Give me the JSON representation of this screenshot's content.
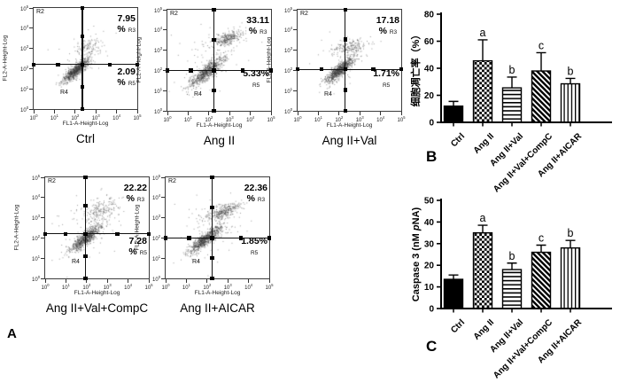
{
  "panel_labels": [
    "A",
    "B",
    "C"
  ],
  "colors": {
    "ink": "#000000",
    "scatter": "#3c3c3c",
    "background": "#ffffff",
    "bar_fill": "#000000"
  },
  "chart_data": [
    {
      "type": "scatter",
      "panel": "A",
      "title": "Ctrl",
      "xlabel": "FL1-A-Height-Log",
      "ylabel": "FL2-A-Height-Log",
      "log_range": [
        0,
        5
      ],
      "tick_exponents": [
        0,
        1,
        2,
        3,
        4,
        5
      ],
      "tick_base": "10",
      "gate": {
        "x": 2.35,
        "y": 2.2
      },
      "region_top_left": "R2",
      "region_lower_left": "R4",
      "upper_right": {
        "line1": "7.95",
        "line2": "%",
        "region": "R3"
      },
      "lower_right": {
        "line1": "2.09",
        "line2": "%",
        "region": "R5"
      },
      "quadrant_stats": {
        "R3_percent": 7.95,
        "R5_percent": 2.09
      },
      "clusters": [
        {
          "n": 850,
          "cx": 2.05,
          "cy": 1.95,
          "s1": 0.4,
          "s2": 0.12,
          "angle": 42
        },
        {
          "n": 120,
          "cx": 2.6,
          "cy": 3.1,
          "s1": 0.32,
          "s2": 0.2,
          "angle": 20
        },
        {
          "n": 40,
          "cx": 2.4,
          "cy": 2.6,
          "s1": 0.9,
          "s2": 0.6,
          "angle": 40
        }
      ],
      "seed": 7
    },
    {
      "type": "scatter",
      "panel": "A",
      "title": "Ang II",
      "xlabel": "FL1-A-Height-Log",
      "ylabel": "FL2-A-Height-Log",
      "log_range": [
        0,
        5
      ],
      "tick_exponents": [
        0,
        1,
        2,
        3,
        4,
        5
      ],
      "tick_base": "10",
      "gate": {
        "x": 2.25,
        "y": 2.0
      },
      "region_top_left": "R2",
      "region_lower_left": "R4",
      "upper_right": {
        "line1": "33.11",
        "line2": "%",
        "region": "R3"
      },
      "lower_right": {
        "line1": "5.33%",
        "line2": "",
        "region": "R5"
      },
      "quadrant_stats": {
        "R3_percent": 33.11,
        "R5_percent": 5.33
      },
      "clusters": [
        {
          "n": 780,
          "cx": 1.9,
          "cy": 1.95,
          "s1": 0.52,
          "s2": 0.15,
          "angle": 40
        },
        {
          "n": 300,
          "cx": 2.9,
          "cy": 3.6,
          "s1": 0.38,
          "s2": 0.16,
          "angle": 18
        },
        {
          "n": 70,
          "cx": 2.2,
          "cy": 2.6,
          "s1": 1.0,
          "s2": 0.7,
          "angle": 40
        }
      ],
      "seed": 13
    },
    {
      "type": "scatter",
      "panel": "A",
      "title": "Ang II+Val",
      "xlabel": "FL1-A-Height-Log",
      "ylabel": "FL2-A-Height-Log",
      "log_range": [
        0,
        5
      ],
      "tick_exponents": [
        0,
        1,
        2,
        3,
        4,
        5
      ],
      "tick_base": "10",
      "gate": {
        "x": 2.3,
        "y": 2.05
      },
      "region_top_left": "R2",
      "region_lower_left": "R4",
      "upper_right": {
        "line1": "17.18",
        "line2": "%",
        "region": "R3"
      },
      "lower_right": {
        "line1": "1.71%",
        "line2": "",
        "region": "R5"
      },
      "quadrant_stats": {
        "R3_percent": 17.18,
        "R5_percent": 1.71
      },
      "clusters": [
        {
          "n": 850,
          "cx": 2.05,
          "cy": 2.05,
          "s1": 0.45,
          "s2": 0.13,
          "angle": 42
        },
        {
          "n": 180,
          "cx": 2.45,
          "cy": 3.15,
          "s1": 0.42,
          "s2": 0.16,
          "angle": 12
        },
        {
          "n": 55,
          "cx": 2.3,
          "cy": 2.7,
          "s1": 0.9,
          "s2": 0.6,
          "angle": 40
        }
      ],
      "seed": 21
    },
    {
      "type": "scatter",
      "panel": "A",
      "title": "Ang II+Val+CompC",
      "xlabel": "FL1-A-Height-Log",
      "ylabel": "FL2-A-Height-Log",
      "log_range": [
        0,
        5
      ],
      "tick_exponents": [
        0,
        1,
        2,
        3,
        4,
        5
      ],
      "tick_base": "10",
      "gate": {
        "x": 1.95,
        "y": 2.2
      },
      "region_top_left": "R2",
      "region_lower_left": "R4",
      "upper_right": {
        "line1": "22.22",
        "line2": "%",
        "region": "R3"
      },
      "lower_right": {
        "line1": "7.28",
        "line2": "%",
        "region": "R5"
      },
      "quadrant_stats": {
        "R3_percent": 22.22,
        "R5_percent": 7.28
      },
      "clusters": [
        {
          "n": 800,
          "cx": 1.95,
          "cy": 2.0,
          "s1": 0.45,
          "s2": 0.14,
          "angle": 40
        },
        {
          "n": 200,
          "cx": 2.6,
          "cy": 3.35,
          "s1": 0.5,
          "s2": 0.28,
          "angle": 25
        },
        {
          "n": 70,
          "cx": 2.4,
          "cy": 2.7,
          "s1": 1.0,
          "s2": 0.7,
          "angle": 40
        }
      ],
      "seed": 33
    },
    {
      "type": "scatter",
      "panel": "A",
      "title": "Ang II+AICAR",
      "xlabel": "FL1-A-Height-Log",
      "ylabel": "FL2-A-Height-Log",
      "log_range": [
        0,
        5
      ],
      "tick_exponents": [
        0,
        1,
        2,
        3,
        4,
        5
      ],
      "tick_base": "10",
      "gate": {
        "x": 2.25,
        "y": 2.0
      },
      "region_top_left": "R2",
      "region_lower_left": "R4",
      "upper_right": {
        "line1": "22.36",
        "line2": "%",
        "region": "R3"
      },
      "lower_right": {
        "line1": "1.85%",
        "line2": "",
        "region": "R5"
      },
      "quadrant_stats": {
        "R3_percent": 22.36,
        "R5_percent": 1.85
      },
      "clusters": [
        {
          "n": 820,
          "cx": 1.9,
          "cy": 1.95,
          "s1": 0.5,
          "s2": 0.14,
          "angle": 40
        },
        {
          "n": 340,
          "cx": 2.75,
          "cy": 3.3,
          "s1": 0.48,
          "s2": 0.16,
          "angle": 22
        },
        {
          "n": 60,
          "cx": 2.3,
          "cy": 2.6,
          "s1": 1.0,
          "s2": 0.7,
          "angle": 40
        }
      ],
      "seed": 47
    },
    {
      "type": "bar",
      "panel": "B",
      "ylabel": "细胞凋亡率（%）",
      "ylabel_segments": [
        [
          "细胞凋亡率（%）",
          "n"
        ]
      ],
      "categories": [
        "Ctrl",
        "Ang II",
        "Ang II+Val",
        "Ang II+Val+CompC",
        "Ang II+AICAR"
      ],
      "values": [
        12,
        45.5,
        25.5,
        38,
        28.5
      ],
      "errors": [
        3.5,
        15.5,
        8,
        13.5,
        4
      ],
      "sig_letters": [
        "",
        "a",
        "b",
        "c",
        "b"
      ],
      "ylim": [
        0,
        80
      ],
      "yticks": [
        0,
        20,
        40,
        60,
        80
      ],
      "patterns": [
        "solid",
        "checker",
        "hlines",
        "dlines",
        "vlines"
      ],
      "grid": false,
      "legend": false
    },
    {
      "type": "bar",
      "panel": "C",
      "ylabel": "Caspase 3 (nM pNA)",
      "ylabel_segments": [
        [
          "Caspase 3 (nM ",
          "n"
        ],
        [
          "p",
          "i"
        ],
        [
          "NA)",
          "n"
        ]
      ],
      "categories": [
        "Ctrl",
        "Ang II",
        "Ang II+Val",
        "Ang II+Val+CompC",
        "Ang II+AICAR"
      ],
      "values": [
        13.5,
        35,
        18,
        26,
        28
      ],
      "errors": [
        2,
        3.5,
        3,
        3.3,
        3.5
      ],
      "sig_letters": [
        "",
        "a",
        "b",
        "c",
        "b"
      ],
      "ylim": [
        0,
        50
      ],
      "yticks": [
        0,
        10,
        20,
        30,
        40,
        50
      ],
      "patterns": [
        "solid",
        "checker",
        "hlines",
        "dlines",
        "vlines"
      ],
      "grid": false,
      "legend": false
    }
  ]
}
